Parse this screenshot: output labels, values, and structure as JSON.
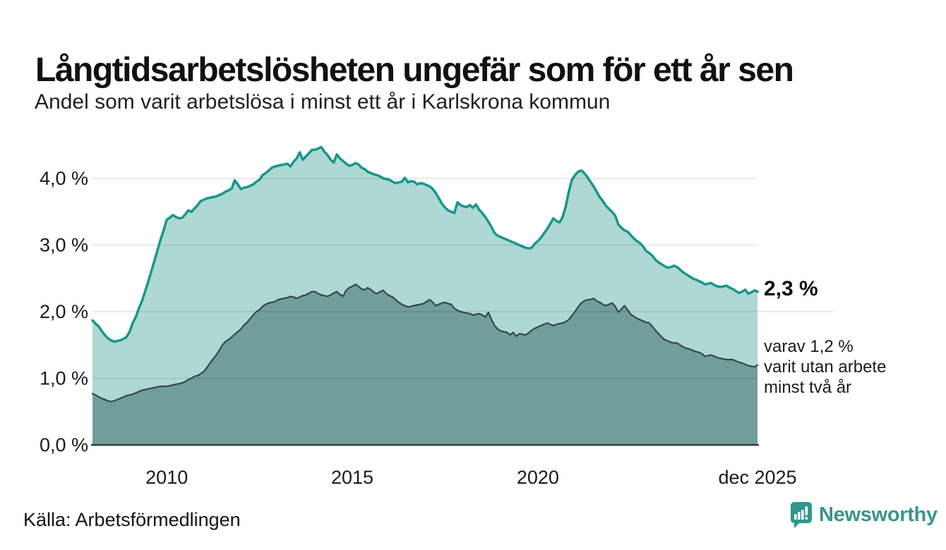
{
  "header": {
    "title": "Långtidsarbetslösheten ungefär som för ett år sen",
    "subtitle": "Andel som varit arbetslösa i minst ett år i Karlskrona kommun"
  },
  "annotations": {
    "latest_value": "2,3 %",
    "secondary_line1": "varav 1,2 %",
    "secondary_line2": "varit utan arbete",
    "secondary_line3": "minst två år"
  },
  "footer": {
    "source": "Källa: Arbetsförmedlingen",
    "brand": "Newsworthy"
  },
  "colors": {
    "line_total": "#17968b",
    "area_total": "#aed8d3",
    "line_two_year": "#32474b",
    "area_two_year": "#719e9a",
    "axis": "#2e3d3d",
    "grid": "rgba(0,0,0,0.11)",
    "tick_text": "#1a1a1a",
    "brand_teal": "#36968d"
  },
  "chart_data": {
    "type": "area",
    "title": "Långtidsarbetslösheten ungefär som för ett år sen",
    "subtitle": "Andel som varit arbetslösa i minst ett år i Karlskrona kommun",
    "xlabel": "",
    "ylabel": "",
    "x_start": "2008-01",
    "x_end": "2025-12",
    "frequency": "monthly",
    "ylim": [
      0,
      4.7
    ],
    "grid": true,
    "legend_position": "none",
    "y_ticks": [
      {
        "label": "0,0 %",
        "value": 0
      },
      {
        "label": "1,0 %",
        "value": 1
      },
      {
        "label": "2,0 %",
        "value": 2
      },
      {
        "label": "3,0 %",
        "value": 3
      },
      {
        "label": "4,0 %",
        "value": 4
      }
    ],
    "x_ticks": [
      {
        "label": "2010",
        "month": 24
      },
      {
        "label": "2015",
        "month": 84
      },
      {
        "label": "2020",
        "month": 144
      },
      {
        "label": "dec 2025",
        "month": 215
      }
    ],
    "series": [
      {
        "name": "Arbetslösa minst ett år",
        "last_value_label": "2,3 %",
        "values": [
          1.87,
          1.82,
          1.78,
          1.71,
          1.65,
          1.6,
          1.57,
          1.55,
          1.56,
          1.57,
          1.59,
          1.62,
          1.7,
          1.83,
          1.92,
          2.05,
          2.16,
          2.3,
          2.45,
          2.6,
          2.76,
          2.92,
          3.08,
          3.22,
          3.38,
          3.41,
          3.45,
          3.42,
          3.4,
          3.41,
          3.46,
          3.52,
          3.5,
          3.55,
          3.6,
          3.66,
          3.68,
          3.7,
          3.71,
          3.72,
          3.73,
          3.75,
          3.77,
          3.8,
          3.82,
          3.85,
          3.97,
          3.91,
          3.84,
          3.86,
          3.87,
          3.89,
          3.91,
          3.95,
          3.98,
          4.05,
          4.08,
          4.12,
          4.16,
          4.18,
          4.19,
          4.2,
          4.21,
          4.22,
          4.18,
          4.25,
          4.3,
          4.39,
          4.28,
          4.33,
          4.38,
          4.43,
          4.43,
          4.45,
          4.47,
          4.4,
          4.35,
          4.28,
          4.24,
          4.36,
          4.3,
          4.26,
          4.22,
          4.19,
          4.2,
          4.23,
          4.21,
          4.16,
          4.14,
          4.1,
          4.08,
          4.06,
          4.05,
          4.03,
          4.0,
          3.99,
          3.98,
          3.95,
          3.93,
          3.94,
          3.95,
          4.01,
          3.94,
          3.96,
          3.95,
          3.91,
          3.93,
          3.92,
          3.9,
          3.88,
          3.84,
          3.78,
          3.7,
          3.62,
          3.56,
          3.52,
          3.5,
          3.48,
          3.64,
          3.6,
          3.58,
          3.57,
          3.6,
          3.56,
          3.61,
          3.53,
          3.48,
          3.42,
          3.35,
          3.27,
          3.18,
          3.14,
          3.12,
          3.1,
          3.08,
          3.06,
          3.04,
          3.02,
          3.0,
          2.98,
          2.96,
          2.95,
          2.96,
          3.02,
          3.06,
          3.11,
          3.18,
          3.24,
          3.32,
          3.4,
          3.36,
          3.34,
          3.42,
          3.58,
          3.8,
          3.98,
          4.05,
          4.1,
          4.12,
          4.08,
          4.02,
          3.95,
          3.88,
          3.8,
          3.72,
          3.66,
          3.59,
          3.54,
          3.5,
          3.44,
          3.31,
          3.26,
          3.22,
          3.2,
          3.15,
          3.1,
          3.06,
          3.03,
          2.98,
          2.91,
          2.88,
          2.84,
          2.78,
          2.74,
          2.71,
          2.68,
          2.66,
          2.67,
          2.69,
          2.67,
          2.63,
          2.59,
          2.56,
          2.53,
          2.5,
          2.48,
          2.46,
          2.44,
          2.41,
          2.42,
          2.43,
          2.4,
          2.38,
          2.37,
          2.38,
          2.39,
          2.36,
          2.34,
          2.31,
          2.28,
          2.3,
          2.33,
          2.27,
          2.29,
          2.32,
          2.3
        ]
      },
      {
        "name": "Arbetslösa minst två år",
        "last_value_label": "1,2 %",
        "values": [
          0.77,
          0.75,
          0.72,
          0.7,
          0.68,
          0.66,
          0.65,
          0.66,
          0.68,
          0.7,
          0.72,
          0.74,
          0.75,
          0.76,
          0.78,
          0.8,
          0.82,
          0.83,
          0.84,
          0.85,
          0.86,
          0.87,
          0.88,
          0.88,
          0.88,
          0.89,
          0.9,
          0.91,
          0.92,
          0.93,
          0.95,
          0.98,
          1.0,
          1.03,
          1.04,
          1.07,
          1.1,
          1.16,
          1.23,
          1.29,
          1.35,
          1.42,
          1.5,
          1.55,
          1.58,
          1.62,
          1.66,
          1.7,
          1.74,
          1.8,
          1.84,
          1.9,
          1.95,
          2.0,
          2.03,
          2.08,
          2.11,
          2.13,
          2.14,
          2.15,
          2.18,
          2.19,
          2.2,
          2.21,
          2.23,
          2.22,
          2.2,
          2.22,
          2.24,
          2.25,
          2.28,
          2.3,
          2.3,
          2.27,
          2.25,
          2.24,
          2.23,
          2.25,
          2.28,
          2.3,
          2.26,
          2.23,
          2.32,
          2.36,
          2.38,
          2.41,
          2.38,
          2.34,
          2.33,
          2.36,
          2.33,
          2.29,
          2.27,
          2.3,
          2.32,
          2.27,
          2.24,
          2.22,
          2.18,
          2.14,
          2.11,
          2.09,
          2.07,
          2.08,
          2.09,
          2.1,
          2.11,
          2.12,
          2.15,
          2.18,
          2.14,
          2.09,
          2.11,
          2.13,
          2.14,
          2.12,
          2.11,
          2.05,
          2.02,
          2.0,
          1.99,
          1.98,
          1.97,
          1.95,
          1.96,
          1.97,
          1.95,
          1.92,
          1.99,
          1.88,
          1.79,
          1.74,
          1.71,
          1.7,
          1.69,
          1.65,
          1.69,
          1.63,
          1.67,
          1.66,
          1.65,
          1.68,
          1.72,
          1.75,
          1.77,
          1.79,
          1.81,
          1.83,
          1.81,
          1.79,
          1.81,
          1.82,
          1.83,
          1.85,
          1.88,
          1.94,
          2.0,
          2.07,
          2.13,
          2.16,
          2.18,
          2.18,
          2.2,
          2.16,
          2.14,
          2.11,
          2.09,
          2.11,
          2.13,
          2.08,
          1.99,
          2.04,
          2.09,
          2.03,
          1.96,
          1.93,
          1.9,
          1.88,
          1.86,
          1.84,
          1.83,
          1.78,
          1.72,
          1.67,
          1.62,
          1.58,
          1.56,
          1.54,
          1.53,
          1.53,
          1.5,
          1.47,
          1.45,
          1.44,
          1.42,
          1.4,
          1.39,
          1.37,
          1.33,
          1.34,
          1.35,
          1.33,
          1.31,
          1.3,
          1.29,
          1.28,
          1.28,
          1.28,
          1.26,
          1.24,
          1.23,
          1.21,
          1.19,
          1.18,
          1.17,
          1.2
        ]
      }
    ]
  }
}
